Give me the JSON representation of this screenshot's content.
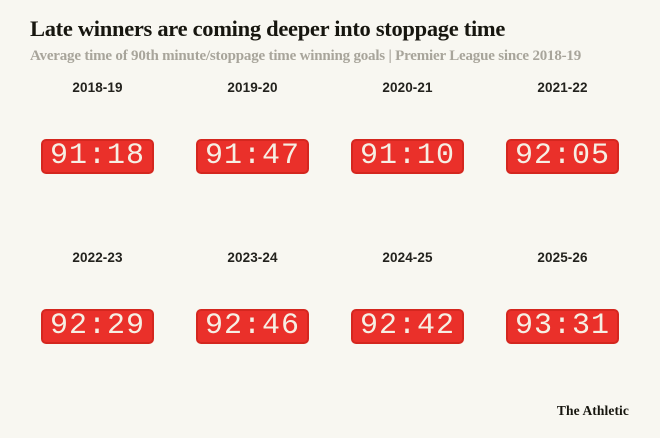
{
  "header": {
    "title": "Late winners are coming deeper into stoppage time",
    "subtitle": "Average time of 90th minute/stoppage time winning goals | Premier League since 2018-19"
  },
  "seasons": [
    {
      "label": "2018-19",
      "time": "91:18"
    },
    {
      "label": "2019-20",
      "time": "91:47"
    },
    {
      "label": "2020-21",
      "time": "91:10"
    },
    {
      "label": "2021-22",
      "time": "92:05"
    },
    {
      "label": "2022-23",
      "time": "92:29"
    },
    {
      "label": "2023-24",
      "time": "92:46"
    },
    {
      "label": "2024-25",
      "time": "92:42"
    },
    {
      "label": "2025-26",
      "time": "93:31"
    }
  ],
  "footer": {
    "brand": "The Athletic"
  },
  "colors": {
    "background": "#f8f7f1",
    "accent_red": "#ea302a",
    "clock_border": "#d4271f",
    "clock_text": "#f6efe4",
    "title": "#17160f",
    "subtitle": "#a8a59b",
    "label": "#23221d"
  },
  "chart_data": {
    "type": "table",
    "title": "Late winners are coming deeper into stoppage time",
    "subtitle": "Average time of 90th minute/stoppage time winning goals | Premier League since 2018-19",
    "categories": [
      "2018-19",
      "2019-20",
      "2020-21",
      "2021-22",
      "2022-23",
      "2023-24",
      "2024-25",
      "2025-26"
    ],
    "values": [
      "91:18",
      "91:47",
      "91:10",
      "92:05",
      "92:29",
      "92:46",
      "92:42",
      "93:31"
    ],
    "values_seconds": [
      5478,
      5507,
      5470,
      5525,
      5549,
      5566,
      5562,
      5611
    ],
    "unit": "average match time of winning goal (mm:ss)",
    "layout": "2 rows x 4 columns of red digital-clock badges, season label above each clock",
    "legend": "none",
    "source_brand": "The Athletic"
  }
}
